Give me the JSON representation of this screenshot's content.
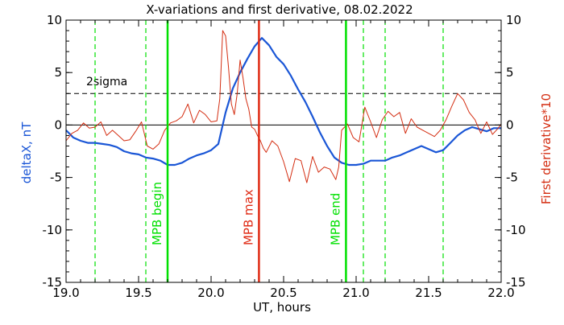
{
  "chart_data": {
    "type": "line",
    "title": "X-variations and first derivative, 08.02.2022",
    "xlabel": "UT, hours",
    "ylabel_left": "deltaX, nT",
    "ylabel_right": "First derivative*10",
    "xlim": [
      19.0,
      22.0
    ],
    "ylim": [
      -15,
      10
    ],
    "x_ticks": [
      19.0,
      19.5,
      20.0,
      20.5,
      21.0,
      21.5,
      22.0
    ],
    "x_tick_labels": [
      "19.0",
      "19.5",
      "20.0",
      "20.5",
      "21.0",
      "21.5",
      "22.0"
    ],
    "y_ticks": [
      -15,
      -10,
      -5,
      0,
      5,
      10
    ],
    "y_tick_labels": [
      "-15",
      "-10",
      "-5",
      "0",
      "5",
      "10"
    ],
    "colors": {
      "deltaX": "#1a56d6",
      "derivative": "#d42e12",
      "mpb_lines": "#00e000",
      "mpb_max": "#e02a14",
      "sigma": "#000000",
      "axis": "#000000"
    },
    "series": [
      {
        "key": "deltaX",
        "axis": "left",
        "x": [
          19.0,
          19.05,
          19.1,
          19.15,
          19.2,
          19.25,
          19.3,
          19.35,
          19.4,
          19.45,
          19.5,
          19.55,
          19.6,
          19.65,
          19.7,
          19.75,
          19.8,
          19.85,
          19.9,
          19.95,
          20.0,
          20.05,
          20.1,
          20.15,
          20.2,
          20.25,
          20.3,
          20.35,
          20.4,
          20.45,
          20.5,
          20.55,
          20.6,
          20.65,
          20.7,
          20.75,
          20.8,
          20.85,
          20.9,
          20.95,
          21.0,
          21.05,
          21.1,
          21.15,
          21.2,
          21.25,
          21.3,
          21.35,
          21.4,
          21.45,
          21.5,
          21.55,
          21.6,
          21.65,
          21.7,
          21.75,
          21.8,
          21.85,
          21.9,
          21.95,
          22.0
        ],
        "y": [
          -0.5,
          -1.2,
          -1.5,
          -1.7,
          -1.7,
          -1.8,
          -1.9,
          -2.1,
          -2.5,
          -2.7,
          -2.8,
          -3.1,
          -3.2,
          -3.4,
          -3.8,
          -3.8,
          -3.6,
          -3.2,
          -2.9,
          -2.7,
          -2.4,
          -1.8,
          1.2,
          3.5,
          5.0,
          6.3,
          7.5,
          8.3,
          7.6,
          6.5,
          5.8,
          4.7,
          3.4,
          2.2,
          0.8,
          -0.7,
          -2.0,
          -3.1,
          -3.6,
          -3.8,
          -3.8,
          -3.7,
          -3.4,
          -3.4,
          -3.4,
          -3.1,
          -2.9,
          -2.6,
          -2.3,
          -2.0,
          -2.3,
          -2.6,
          -2.4,
          -1.7,
          -1.0,
          -0.5,
          -0.2,
          -0.4,
          -0.6,
          -0.3,
          -0.3
        ]
      },
      {
        "key": "derivative",
        "axis": "right",
        "x": [
          19.0,
          19.04,
          19.08,
          19.12,
          19.16,
          19.2,
          19.24,
          19.28,
          19.32,
          19.36,
          19.4,
          19.44,
          19.48,
          19.52,
          19.56,
          19.6,
          19.64,
          19.68,
          19.72,
          19.76,
          19.8,
          19.84,
          19.88,
          19.92,
          19.96,
          20.0,
          20.04,
          20.06,
          20.08,
          20.1,
          20.12,
          20.14,
          20.16,
          20.18,
          20.2,
          20.22,
          20.24,
          20.26,
          20.28,
          20.3,
          20.32,
          20.34,
          20.36,
          20.38,
          20.42,
          20.46,
          20.5,
          20.54,
          20.58,
          20.62,
          20.66,
          20.7,
          20.74,
          20.78,
          20.82,
          20.86,
          20.88,
          20.9,
          20.94,
          20.98,
          21.02,
          21.06,
          21.1,
          21.14,
          21.18,
          21.22,
          21.26,
          21.3,
          21.34,
          21.38,
          21.42,
          21.46,
          21.5,
          21.54,
          21.58,
          21.62,
          21.66,
          21.7,
          21.74,
          21.78,
          21.82,
          21.86,
          21.9,
          21.94,
          21.98,
          22.0
        ],
        "y": [
          -1.5,
          -0.8,
          -0.5,
          0.2,
          -0.3,
          -0.2,
          0.3,
          -1.0,
          -0.5,
          -1.0,
          -1.5,
          -1.4,
          -0.6,
          0.3,
          -2.0,
          -2.3,
          -1.8,
          -0.5,
          0.2,
          0.4,
          0.8,
          2.0,
          0.2,
          1.4,
          1.0,
          0.3,
          0.4,
          2.5,
          9.0,
          8.5,
          5.5,
          2.0,
          1.0,
          3.0,
          6.2,
          4.5,
          2.5,
          1.5,
          -0.2,
          -0.4,
          -1.0,
          -1.5,
          -2.2,
          -2.6,
          -1.5,
          -2.0,
          -3.5,
          -5.4,
          -3.2,
          -3.4,
          -5.5,
          -3.0,
          -4.5,
          -4.0,
          -4.2,
          -5.2,
          -4.0,
          -0.5,
          0.1,
          -1.2,
          -1.6,
          1.7,
          0.3,
          -1.2,
          0.5,
          1.3,
          0.8,
          1.2,
          -0.8,
          0.6,
          -0.2,
          -0.5,
          -0.8,
          -1.1,
          -0.5,
          0.5,
          1.8,
          3.0,
          2.4,
          1.2,
          0.5,
          -0.8,
          0.3,
          -0.9,
          -0.3,
          0.1
        ]
      }
    ],
    "sigma_level": 3.0,
    "sigma_label": "2sigma",
    "zero_line": 0,
    "dashed_green_x": [
      19.2,
      19.55,
      21.05,
      21.2,
      21.6
    ],
    "markers": [
      {
        "x": 19.7,
        "label": "MPB begin",
        "color": "#00e000"
      },
      {
        "x": 20.33,
        "label": "MPB max",
        "color": "#e02a14"
      },
      {
        "x": 20.93,
        "label": "MPB end",
        "color": "#00e000"
      }
    ]
  }
}
